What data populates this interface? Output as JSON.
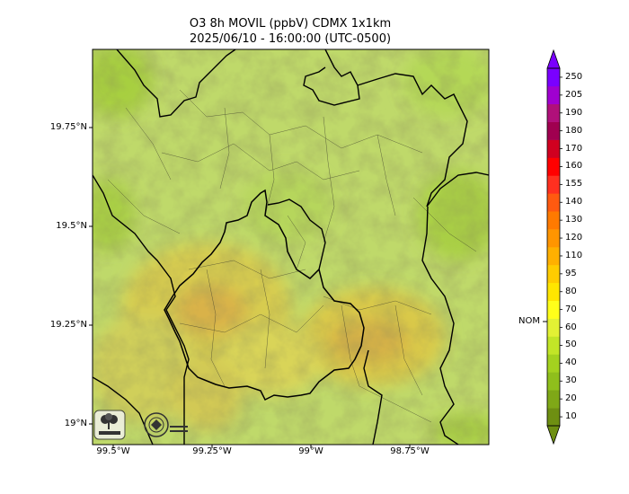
{
  "title": {
    "line1": "O3 8h MOVIL (ppbV) CDMX 1x1km",
    "line2": "2025/06/10 - 16:00:00 (UTC-0500)"
  },
  "axes": {
    "y_ticks": [
      "19.75°N",
      "19.5°N",
      "19.25°N",
      "19°N"
    ],
    "x_ticks": [
      "99.5°W",
      "99.25°W",
      "99°W",
      "98.75°W"
    ]
  },
  "colorbar": {
    "labels": [
      "10",
      "20",
      "30",
      "40",
      "50",
      "60",
      "70",
      "80",
      "95",
      "110",
      "120",
      "130",
      "140",
      "155",
      "160",
      "170",
      "180",
      "190",
      "205",
      "250"
    ],
    "colors": [
      "#6e8f12",
      "#7fa817",
      "#8fbf1c",
      "#a4d21f",
      "#c2e527",
      "#e2f134",
      "#ffff1a",
      "#ffe600",
      "#ffcc00",
      "#ffb000",
      "#ff9500",
      "#ff7a00",
      "#ff5a10",
      "#ff3020",
      "#ff0000",
      "#d00020",
      "#a00050",
      "#b0107a",
      "#a000d0",
      "#7a00ff"
    ],
    "nom_label": "NOM",
    "nom_value": 60
  },
  "logos": {
    "left_name": "SEDEMA",
    "right_name": "CIUDAD DE MEXICO"
  }
}
